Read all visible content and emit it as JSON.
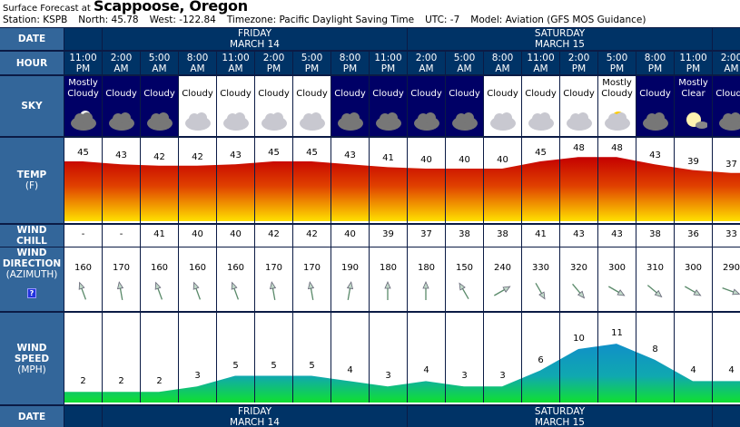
{
  "header": {
    "prefix": "Surface Forecast at",
    "location": "Scappoose, Oregon",
    "station": "Station: KSPB",
    "north": "North: 45.78",
    "west": "West: -122.84",
    "timezone": "Timezone: Pacific Daylight Saving Time",
    "utc": "UTC: -7",
    "model": "Model: Aviation (GFS MOS Guidance)"
  },
  "labels": {
    "date": "DATE",
    "hour": "HOUR",
    "sky": "SKY",
    "temp": "TEMP",
    "temp_unit": "(F)",
    "wind_chill": [
      "WIND",
      "CHILL"
    ],
    "wind_dir": [
      "WIND",
      "DIRECTION",
      "(AZIMUTH)"
    ],
    "help": "?",
    "wind_speed": [
      "WIND",
      "SPEED",
      "(MPH)"
    ]
  },
  "dates": [
    {
      "day": "FRIDAY",
      "date": "MARCH 14",
      "start": 1,
      "span": 8
    },
    {
      "day": "SATURDAY",
      "date": "MARCH 15",
      "start": 9,
      "span": 8
    }
  ],
  "columns": [
    {
      "hour": "11:00",
      "ampm": "PM",
      "sky": "Mostly Cloudy",
      "night": true,
      "icon": "partly-cloudy-night-icon",
      "temp": 45,
      "chill": "-",
      "dir": 160,
      "speed": 2
    },
    {
      "hour": "2:00",
      "ampm": "AM",
      "sky": "Cloudy",
      "night": true,
      "icon": "cloudy-icon",
      "temp": 43,
      "chill": "-",
      "dir": 170,
      "speed": 2
    },
    {
      "hour": "5:00",
      "ampm": "AM",
      "sky": "Cloudy",
      "night": true,
      "icon": "cloudy-icon",
      "temp": 42,
      "chill": "41",
      "dir": 160,
      "speed": 2
    },
    {
      "hour": "8:00",
      "ampm": "AM",
      "sky": "Cloudy",
      "night": false,
      "icon": "cloudy-icon",
      "temp": 42,
      "chill": "40",
      "dir": 160,
      "speed": 3
    },
    {
      "hour": "11:00",
      "ampm": "AM",
      "sky": "Cloudy",
      "night": false,
      "icon": "cloudy-icon",
      "temp": 43,
      "chill": "40",
      "dir": 160,
      "speed": 5
    },
    {
      "hour": "2:00",
      "ampm": "PM",
      "sky": "Cloudy",
      "night": false,
      "icon": "cloudy-icon",
      "temp": 45,
      "chill": "42",
      "dir": 170,
      "speed": 5
    },
    {
      "hour": "5:00",
      "ampm": "PM",
      "sky": "Cloudy",
      "night": false,
      "icon": "cloudy-icon",
      "temp": 45,
      "chill": "42",
      "dir": 170,
      "speed": 5
    },
    {
      "hour": "8:00",
      "ampm": "PM",
      "sky": "Cloudy",
      "night": true,
      "icon": "cloudy-icon",
      "temp": 43,
      "chill": "40",
      "dir": 190,
      "speed": 4
    },
    {
      "hour": "11:00",
      "ampm": "PM",
      "sky": "Cloudy",
      "night": true,
      "icon": "cloudy-icon",
      "temp": 41,
      "chill": "39",
      "dir": 180,
      "speed": 3
    },
    {
      "hour": "2:00",
      "ampm": "AM",
      "sky": "Cloudy",
      "night": true,
      "icon": "cloudy-icon",
      "temp": 40,
      "chill": "37",
      "dir": 180,
      "speed": 4
    },
    {
      "hour": "5:00",
      "ampm": "AM",
      "sky": "Cloudy",
      "night": true,
      "icon": "cloudy-icon",
      "temp": 40,
      "chill": "38",
      "dir": 150,
      "speed": 3
    },
    {
      "hour": "8:00",
      "ampm": "AM",
      "sky": "Cloudy",
      "night": false,
      "icon": "cloudy-icon",
      "temp": 40,
      "chill": "38",
      "dir": 240,
      "speed": 3
    },
    {
      "hour": "11:00",
      "ampm": "AM",
      "sky": "Cloudy",
      "night": false,
      "icon": "cloudy-icon",
      "temp": 45,
      "chill": "41",
      "dir": 330,
      "speed": 6
    },
    {
      "hour": "2:00",
      "ampm": "PM",
      "sky": "Cloudy",
      "night": false,
      "icon": "cloudy-icon",
      "temp": 48,
      "chill": "43",
      "dir": 320,
      "speed": 10
    },
    {
      "hour": "5:00",
      "ampm": "PM",
      "sky": "Mostly Cloudy",
      "night": false,
      "icon": "partly-cloudy-day-icon",
      "temp": 48,
      "chill": "43",
      "dir": 300,
      "speed": 11
    },
    {
      "hour": "8:00",
      "ampm": "PM",
      "sky": "Cloudy",
      "night": true,
      "icon": "cloudy-icon",
      "temp": 43,
      "chill": "38",
      "dir": 310,
      "speed": 8
    },
    {
      "hour": "11:00",
      "ampm": "PM",
      "sky": "Mostly Clear",
      "night": true,
      "icon": "moon-icon",
      "temp": 39,
      "chill": "36",
      "dir": 300,
      "speed": 4
    },
    {
      "hour": "2:00",
      "ampm": "AM",
      "sky": "Cloudy",
      "night": true,
      "icon": "cloudy-icon",
      "temp": 37,
      "chill": "33",
      "dir": 290,
      "speed": 4
    }
  ],
  "colors": {
    "header_bg": "#003366",
    "label_bg": "#33669a",
    "night_bg": "#000066",
    "temp_top": "#c40000",
    "temp_bottom": "#ffe000",
    "wind_top": "#1090c8",
    "wind_bottom": "#10e030"
  }
}
